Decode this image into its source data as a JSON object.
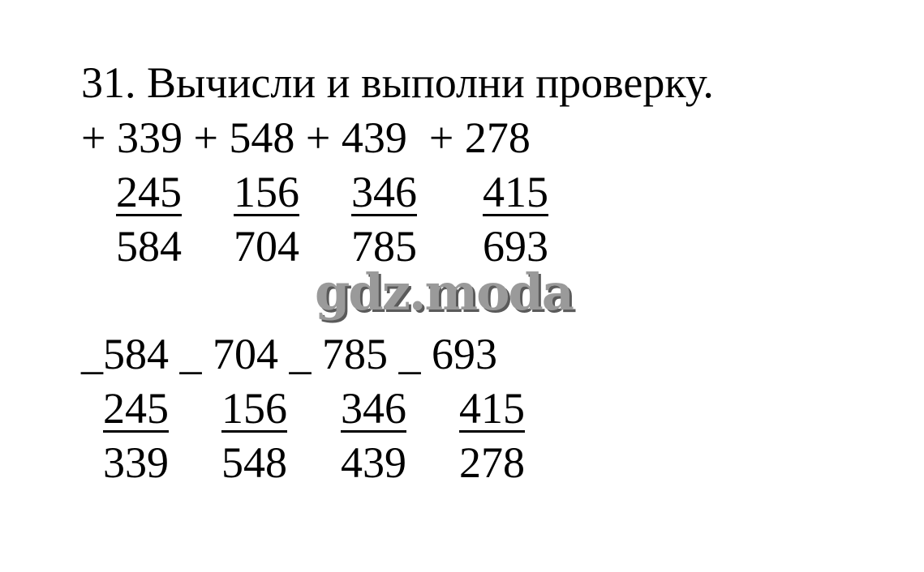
{
  "title": "31. Вычисли и выполни проверку.",
  "addition": {
    "operands_row": "+ 339 + 548 + 439  + 278",
    "second_operands": [
      "245",
      "156",
      "346",
      "415"
    ],
    "results": [
      "584",
      "704",
      "785",
      "693"
    ]
  },
  "watermark": "gdz.moda",
  "subtraction": {
    "minuends_row": "_584 _ 704 _ 785 _ 693",
    "subtrahends": [
      "245",
      "156",
      "346",
      "415"
    ],
    "results": [
      "339",
      "548",
      "439",
      "278"
    ]
  }
}
